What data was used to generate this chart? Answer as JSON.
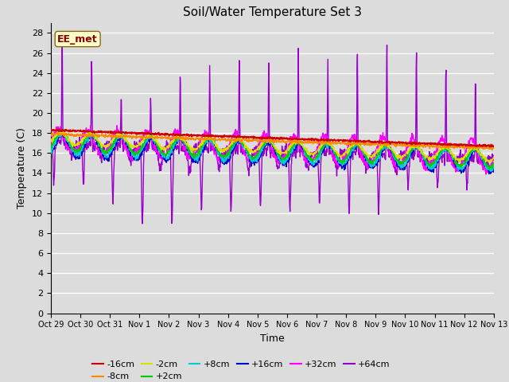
{
  "title": "Soil/Water Temperature Set 3",
  "xlabel": "Time",
  "ylabel": "Temperature (C)",
  "ylim": [
    0,
    29
  ],
  "yticks": [
    0,
    2,
    4,
    6,
    8,
    10,
    12,
    14,
    16,
    18,
    20,
    22,
    24,
    26,
    28
  ],
  "background_color": "#dcdcdc",
  "plot_bg_color": "#dcdcdc",
  "legend_label": "EE_met",
  "series_colors": {
    "-16cm": "#cc0000",
    "-8cm": "#ff8800",
    "-2cm": "#dddd00",
    "+2cm": "#00cc00",
    "+8cm": "#00cccc",
    "+16cm": "#0000cc",
    "+32cm": "#ff00ff",
    "+64cm": "#9900cc"
  },
  "x_tick_labels": [
    "Oct 29",
    "Oct 30",
    "Oct 31",
    "Nov 1",
    "Nov 2",
    "Nov 3",
    "Nov 4",
    "Nov 5",
    "Nov 6",
    "Nov 7",
    "Nov 8",
    "Nov 9",
    "Nov 10",
    "Nov 11",
    "Nov 12",
    "Nov 13"
  ],
  "n_days": 15,
  "pts_per_day": 96
}
